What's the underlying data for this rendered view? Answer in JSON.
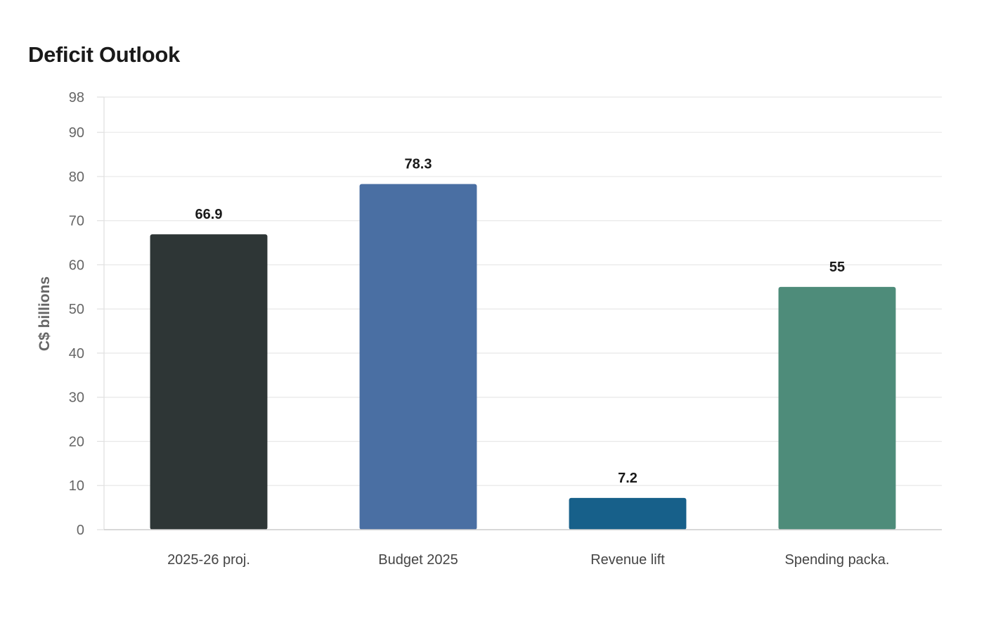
{
  "chart_data": {
    "type": "bar",
    "title": "Deficit Outlook",
    "xlabel": "",
    "ylabel": "C$ billions",
    "categories": [
      "2025-26 proj.",
      "Budget 2025",
      "Revenue lift",
      "Spending packa."
    ],
    "values": [
      66.9,
      78.3,
      7.2,
      55
    ],
    "value_labels": [
      "66.9",
      "78.3",
      "7.2",
      "55"
    ],
    "colors": [
      "#2e3636",
      "#4a6fa3",
      "#17608a",
      "#4e8c7a"
    ],
    "ylim": [
      0,
      98
    ],
    "yticks": [
      0,
      10,
      20,
      30,
      40,
      50,
      60,
      70,
      80,
      90,
      98
    ],
    "grid": true,
    "legend": "none"
  }
}
